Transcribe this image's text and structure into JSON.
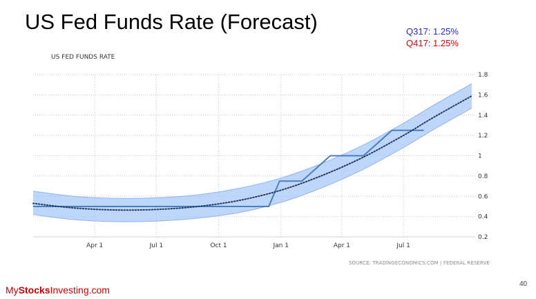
{
  "slide": {
    "title": "US Fed Funds Rate (Forecast)",
    "q3_label": "Q317: 1.25%",
    "q4_label": "Q417: 1.25%",
    "page_number": "40"
  },
  "brand": {
    "prefix": "My",
    "bold": "Stocks",
    "suffix": "Investing.com",
    "color": "#cc0000"
  },
  "colors": {
    "q3": "#2a2ad0",
    "q4": "#e00000",
    "band": "#a8c8f8",
    "line": "#4a7fbf",
    "trend": "#233a5e",
    "grid": "#c8c8c8"
  },
  "chart_data": {
    "type": "line",
    "title": "US FED FUNDS RATE",
    "source": "SOURCE: TRADINGECONOMICS.COM | FEDERAL RESERVE",
    "xlim": [
      "2016-01-01",
      "2017-10-15"
    ],
    "ylim": [
      0.2,
      1.8
    ],
    "y_ticks": [
      0.2,
      0.4,
      0.6,
      0.8,
      1,
      1.2,
      1.4,
      1.6,
      1.8
    ],
    "y_tick_labels": [
      "0.2",
      "0.4",
      "0.6",
      "0.8",
      "1",
      "1.2",
      "1.4",
      "1.6",
      "1.8"
    ],
    "x_ticks": [
      "2016-04-01",
      "2016-07-01",
      "2016-10-01",
      "2017-01-01",
      "2017-04-01",
      "2017-07-01"
    ],
    "x_tick_labels": [
      "Apr 1",
      "Jul 1",
      "Oct 1",
      "Jan 1",
      "Apr 1",
      "Jul 1"
    ],
    "grid": true,
    "series": [
      {
        "style": "solid",
        "points": [
          [
            "2016-01-01",
            0.5
          ],
          [
            "2016-12-14",
            0.5
          ],
          [
            "2016-12-30",
            0.75
          ],
          [
            "2017-02-01",
            0.75
          ],
          [
            "2017-03-15",
            1.0
          ],
          [
            "2017-05-03",
            1.0
          ],
          [
            "2017-06-14",
            1.25
          ],
          [
            "2017-07-31",
            1.25
          ]
        ]
      },
      {
        "style": "dotted",
        "points": [
          [
            "2016-01-01",
            0.53
          ],
          [
            "2016-03-01",
            0.485
          ],
          [
            "2016-05-01",
            0.465
          ],
          [
            "2016-07-01",
            0.47
          ],
          [
            "2016-09-01",
            0.5
          ],
          [
            "2016-11-01",
            0.56
          ],
          [
            "2017-01-01",
            0.66
          ],
          [
            "2017-03-01",
            0.8
          ],
          [
            "2017-05-01",
            0.98
          ],
          [
            "2017-07-01",
            1.2
          ],
          [
            "2017-08-15",
            1.38
          ],
          [
            "2017-10-10",
            1.59
          ]
        ]
      },
      {
        "style": "band-upper",
        "points": [
          [
            "2016-01-01",
            0.65
          ],
          [
            "2016-03-01",
            0.6
          ],
          [
            "2016-05-01",
            0.58
          ],
          [
            "2016-07-01",
            0.585
          ],
          [
            "2016-09-01",
            0.615
          ],
          [
            "2016-11-01",
            0.68
          ],
          [
            "2017-01-01",
            0.78
          ],
          [
            "2017-03-01",
            0.92
          ],
          [
            "2017-05-01",
            1.1
          ],
          [
            "2017-07-01",
            1.32
          ],
          [
            "2017-08-15",
            1.5
          ],
          [
            "2017-10-10",
            1.71
          ]
        ]
      },
      {
        "style": "band-lower",
        "points": [
          [
            "2016-01-01",
            0.42
          ],
          [
            "2016-03-01",
            0.37
          ],
          [
            "2016-05-01",
            0.35
          ],
          [
            "2016-07-01",
            0.355
          ],
          [
            "2016-09-01",
            0.385
          ],
          [
            "2016-11-01",
            0.44
          ],
          [
            "2017-01-01",
            0.54
          ],
          [
            "2017-03-01",
            0.68
          ],
          [
            "2017-05-01",
            0.86
          ],
          [
            "2017-07-01",
            1.08
          ],
          [
            "2017-08-15",
            1.26
          ],
          [
            "2017-10-10",
            1.47
          ]
        ]
      }
    ]
  }
}
